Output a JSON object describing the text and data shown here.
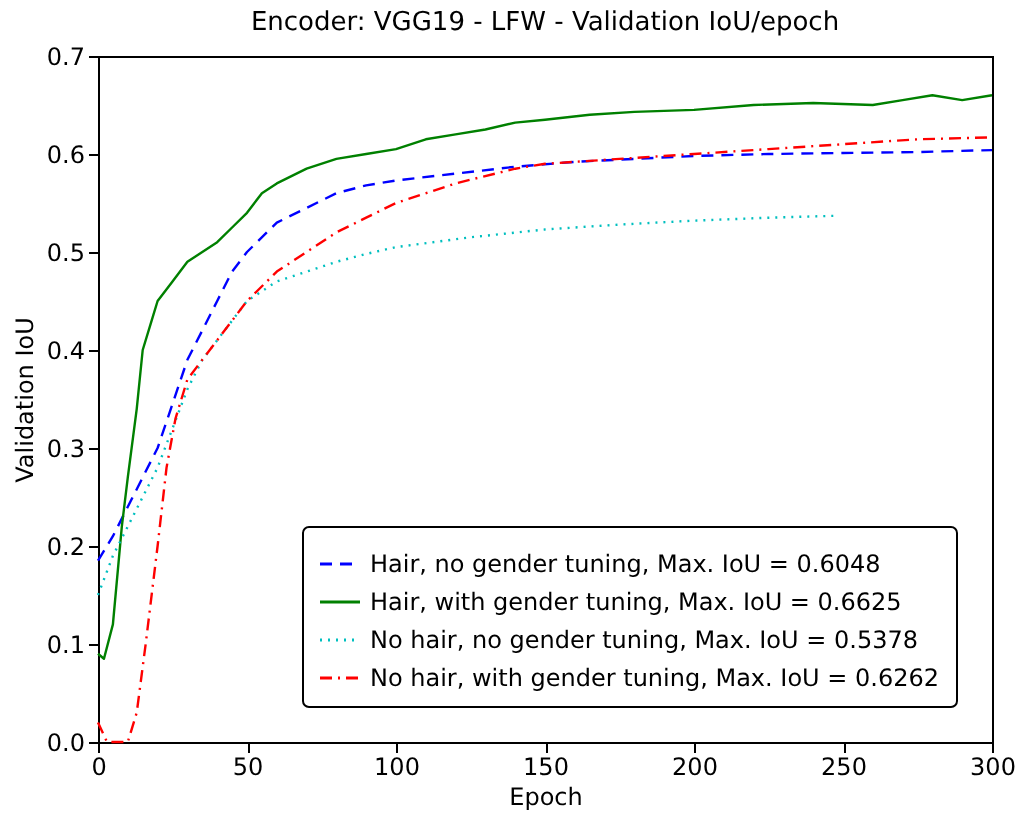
{
  "chart_data": {
    "type": "line",
    "title": "Encoder: VGG19 - LFW - Validation IoU/epoch",
    "xlabel": "Epoch",
    "ylabel": "Validation IoU",
    "xlim": [
      0,
      300
    ],
    "xticks": [
      0,
      50,
      100,
      150,
      200,
      250,
      300
    ],
    "ylim": [
      0,
      0.7
    ],
    "yticks": [
      {
        "value": 0,
        "label": "0.0"
      },
      {
        "value": 0.1,
        "label": "0.1"
      },
      {
        "value": 0.2,
        "label": "0.2"
      },
      {
        "value": 0.3,
        "label": "0.3"
      },
      {
        "value": 0.4,
        "label": "0.4"
      },
      {
        "value": 0.5,
        "label": "0.5"
      },
      {
        "value": 0.6,
        "label": "0.6"
      },
      {
        "value": 0.7,
        "label": "0.7"
      }
    ],
    "grid": false,
    "legend": "bottom right",
    "marker": "none",
    "series": [
      {
        "name": "Hair, no gender tuning, Max. IoU = 0.6048",
        "color": "#0000ff",
        "line_style": "dashed",
        "x": [
          0,
          5,
          10,
          15,
          20,
          25,
          30,
          35,
          40,
          45,
          50,
          60,
          70,
          80,
          90,
          100,
          120,
          140,
          160,
          180,
          200,
          225,
          250,
          275,
          300
        ],
        "values": [
          0.185,
          0.21,
          0.24,
          0.27,
          0.3,
          0.345,
          0.39,
          0.42,
          0.45,
          0.48,
          0.5,
          0.53,
          0.545,
          0.56,
          0.568,
          0.573,
          0.58,
          0.587,
          0.592,
          0.595,
          0.598,
          0.6,
          0.601,
          0.602,
          0.604
        ]
      },
      {
        "name": "Hair, with gender tuning, Max. IoU = 0.6625",
        "color": "#008000",
        "line_style": "solid",
        "x": [
          0,
          2,
          5,
          8,
          10,
          13,
          15,
          18,
          20,
          25,
          30,
          35,
          40,
          45,
          50,
          55,
          60,
          70,
          80,
          90,
          100,
          110,
          120,
          130,
          140,
          150,
          165,
          180,
          200,
          220,
          240,
          260,
          270,
          280,
          290,
          300
        ],
        "values": [
          0.09,
          0.085,
          0.12,
          0.22,
          0.27,
          0.34,
          0.4,
          0.43,
          0.45,
          0.47,
          0.49,
          0.5,
          0.51,
          0.525,
          0.54,
          0.56,
          0.57,
          0.585,
          0.595,
          0.6,
          0.605,
          0.615,
          0.62,
          0.625,
          0.632,
          0.635,
          0.64,
          0.643,
          0.645,
          0.65,
          0.652,
          0.65,
          0.655,
          0.66,
          0.655,
          0.66
        ]
      },
      {
        "name": "No hair, no gender tuning, Max. IoU = 0.5378",
        "color": "#00bfbf",
        "line_style": "dotted",
        "x": [
          0,
          5,
          10,
          15,
          20,
          25,
          30,
          35,
          40,
          45,
          50,
          60,
          70,
          80,
          90,
          100,
          125,
          150,
          175,
          200,
          225,
          248
        ],
        "values": [
          0.15,
          0.19,
          0.22,
          0.25,
          0.28,
          0.32,
          0.36,
          0.39,
          0.41,
          0.43,
          0.45,
          0.47,
          0.48,
          0.49,
          0.498,
          0.505,
          0.515,
          0.523,
          0.528,
          0.532,
          0.535,
          0.537
        ]
      },
      {
        "name": "No hair, with gender tuning, Max. IoU = 0.6262",
        "color": "#ff0000",
        "line_style": "dashdot",
        "x": [
          0,
          3,
          6,
          10,
          13,
          16,
          20,
          23,
          26,
          30,
          35,
          40,
          45,
          50,
          60,
          70,
          80,
          90,
          100,
          120,
          140,
          150,
          175,
          200,
          225,
          250,
          275,
          300
        ],
        "values": [
          0.02,
          0.0,
          0.0,
          0.0,
          0.03,
          0.1,
          0.2,
          0.28,
          0.33,
          0.37,
          0.39,
          0.41,
          0.43,
          0.45,
          0.48,
          0.5,
          0.52,
          0.535,
          0.55,
          0.57,
          0.585,
          0.59,
          0.595,
          0.6,
          0.605,
          0.61,
          0.615,
          0.617
        ]
      }
    ]
  }
}
